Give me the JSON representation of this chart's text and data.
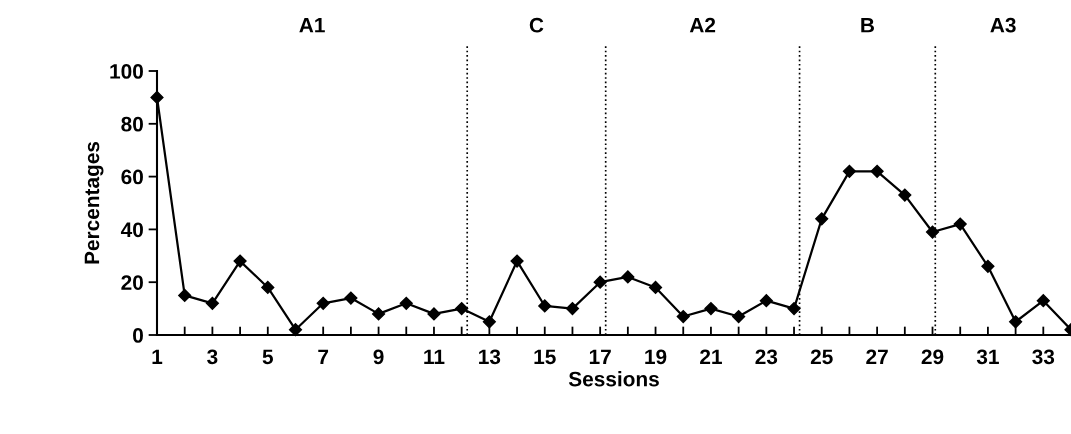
{
  "chart_data": {
    "type": "line",
    "xlabel": "Sessions",
    "ylabel": "Percentages",
    "x": [
      1,
      2,
      3,
      4,
      5,
      6,
      7,
      8,
      9,
      10,
      11,
      12,
      13,
      14,
      15,
      16,
      17,
      18,
      19,
      20,
      21,
      22,
      23,
      24,
      25,
      26,
      27,
      28,
      29,
      30,
      31,
      32,
      33,
      34
    ],
    "series": [
      {
        "color": "#000000",
        "values": [
          90,
          15,
          12,
          28,
          18,
          2,
          12,
          14,
          8,
          12,
          8,
          10,
          5,
          28,
          11,
          10,
          20,
          22,
          18,
          7,
          10,
          7,
          13,
          10,
          44,
          62,
          62,
          53,
          39,
          42,
          26,
          5,
          13,
          2
        ]
      }
    ],
    "xlim": [
      1,
      34
    ],
    "xticks": [
      1,
      {
        "value": 2,
        "label": null
      },
      3,
      {
        "value": 4,
        "label": null
      },
      5,
      {
        "value": 6,
        "label": null
      },
      7,
      {
        "value": 8,
        "label": null
      },
      9,
      {
        "value": 10,
        "label": null
      },
      11,
      {
        "value": 12,
        "label": null
      },
      13,
      {
        "value": 14,
        "label": null
      },
      15,
      {
        "value": 16,
        "label": null
      },
      17,
      {
        "value": 18,
        "label": null
      },
      19,
      {
        "value": 20,
        "label": null
      },
      21,
      {
        "value": 22,
        "label": null
      },
      23,
      {
        "value": 24,
        "label": null
      },
      25,
      {
        "value": 26,
        "label": null
      },
      27,
      {
        "value": 28,
        "label": null
      },
      29,
      {
        "value": 30,
        "label": null
      },
      31,
      {
        "value": 32,
        "label": null
      },
      33,
      {
        "value": 34,
        "label": null
      }
    ],
    "ylim": [
      0,
      100
    ],
    "yticks": [
      0,
      20,
      40,
      60,
      80,
      100
    ],
    "ref_lines": [
      {
        "axis": "x",
        "value": 12.2,
        "line_style": "dotted",
        "color": "#000000"
      },
      {
        "axis": "x",
        "value": 17.2,
        "line_style": "dotted",
        "color": "#000000"
      },
      {
        "axis": "x",
        "value": 24.2,
        "line_style": "dotted",
        "color": "#000000"
      },
      {
        "axis": "x",
        "value": 29.1,
        "line_style": "dotted",
        "color": "#000000"
      }
    ],
    "annotations": [
      "A1",
      "C",
      "A2",
      "B",
      "A3"
    ],
    "marker": "diamond",
    "line_style": "solid",
    "grid": false,
    "legend": false
  }
}
